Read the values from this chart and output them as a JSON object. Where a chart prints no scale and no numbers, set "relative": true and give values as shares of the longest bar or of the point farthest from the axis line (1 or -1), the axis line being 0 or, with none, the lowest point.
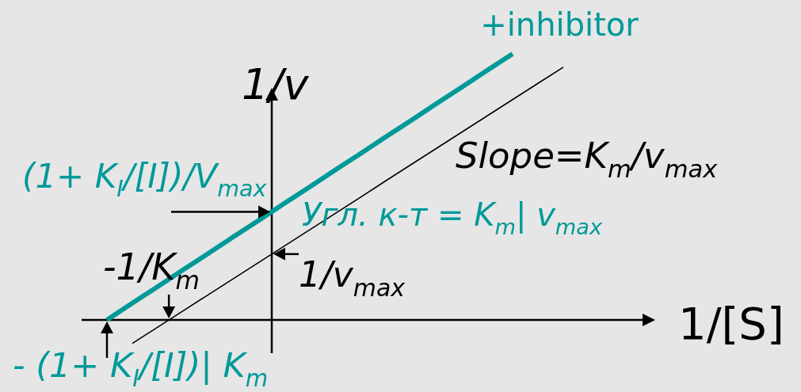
{
  "chart_data": {
    "type": "line",
    "relative": true,
    "xlabel": "1/[S]",
    "ylabel": "1/v",
    "categories": [
      null,
      null,
      null,
      null,
      null,
      null,
      null,
      null,
      null,
      null,
      null,
      null,
      null,
      null,
      null,
      null,
      null,
      null,
      null
    ],
    "series": [
      {
        "name": "+inhibitor",
        "color": "#009999",
        "values": [
          0,
          0.063,
          0.125,
          0.188,
          0.25,
          0.313,
          0.375,
          0.438,
          0.5,
          0.563,
          0.625,
          0.688,
          0.75,
          0.813,
          0.875,
          0.938,
          1,
          null,
          null
        ]
      },
      {
        "color": "#000000",
        "values": [
          null,
          -0.088,
          -0.027,
          0.034,
          0.095,
          0.156,
          0.217,
          0.278,
          0.339,
          0.4,
          0.461,
          0.523,
          0.584,
          0.645,
          0.706,
          0.767,
          0.828,
          0.889,
          0.95
        ]
      }
    ],
    "annotations": [
      "Slope=K$_{m}$/v$_{max}$",
      "Угл. к-т = K$_{m}$| v$_{max}$",
      "(1+ K$_{I}$/[I])/V$_{max}$",
      "1/v$_{max}$",
      "-1/K$_{m}$",
      "- (1+ K$_{I}$/[I])| K$_{m}$"
    ]
  }
}
